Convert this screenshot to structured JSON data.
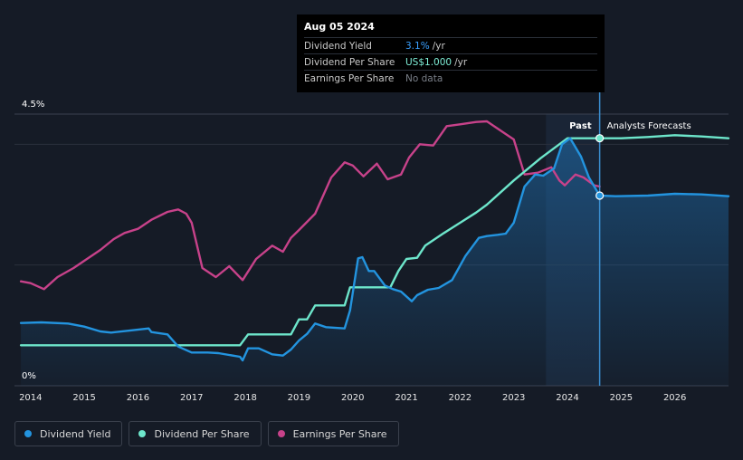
{
  "tooltip": {
    "date": "Aug 05 2024",
    "rows": [
      {
        "label": "Dividend Yield",
        "value": "3.1%",
        "unit": "/yr"
      },
      {
        "label": "Dividend Per Share",
        "value": "US$1.000",
        "unit": "/yr"
      },
      {
        "label": "Earnings Per Share",
        "value": "No data"
      }
    ]
  },
  "period_labels": {
    "past": "Past",
    "forecast": "Analysts Forecasts"
  },
  "legend": [
    {
      "label": "Dividend Yield",
      "color": "#2394df"
    },
    {
      "label": "Dividend Per Share",
      "color": "#6de6cb"
    },
    {
      "label": "Earnings Per Share",
      "color": "#c7428a"
    }
  ],
  "chart_data": {
    "type": "line",
    "x_range": [
      2013.7,
      2027.0
    ],
    "ylim": [
      0,
      4.5
    ],
    "y_tick_labels": [
      {
        "value": 0,
        "label": "0%"
      },
      {
        "value": 4.5,
        "label": "4.5%"
      }
    ],
    "x_ticks": [
      "2014",
      "2015",
      "2016",
      "2017",
      "2018",
      "2019",
      "2020",
      "2021",
      "2022",
      "2023",
      "2024",
      "2025",
      "2026"
    ],
    "forecast_start": 2024.6,
    "highlight_start": 2023.6,
    "series": [
      {
        "name": "Dividend Yield",
        "color": "#2394df",
        "x": [
          2013.82,
          2014.2,
          2014.7,
          2015.0,
          2015.3,
          2015.5,
          2015.9,
          2016.2,
          2016.25,
          2016.55,
          2016.75,
          2017.0,
          2017.3,
          2017.5,
          2017.9,
          2017.95,
          2018.05,
          2018.25,
          2018.5,
          2018.7,
          2018.85,
          2019.0,
          2019.15,
          2019.3,
          2019.5,
          2019.85,
          2019.95,
          2020.1,
          2020.18,
          2020.3,
          2020.4,
          2020.6,
          2020.75,
          2020.9,
          2021.1,
          2021.2,
          2021.4,
          2021.6,
          2021.85,
          2022.1,
          2022.35,
          2022.5,
          2022.7,
          2022.85,
          2023.0,
          2023.2,
          2023.4,
          2023.55,
          2023.75,
          2023.9,
          2024.05,
          2024.25,
          2024.4,
          2024.6,
          2024.9,
          2025.5,
          2026.0,
          2026.5,
          2027.0
        ],
        "y": [
          1.04,
          1.05,
          1.03,
          0.98,
          0.9,
          0.88,
          0.92,
          0.95,
          0.89,
          0.85,
          0.65,
          0.55,
          0.55,
          0.54,
          0.48,
          0.42,
          0.62,
          0.62,
          0.52,
          0.5,
          0.6,
          0.75,
          0.86,
          1.03,
          0.97,
          0.95,
          1.25,
          2.11,
          2.13,
          1.9,
          1.9,
          1.66,
          1.6,
          1.56,
          1.4,
          1.5,
          1.59,
          1.62,
          1.75,
          2.15,
          2.45,
          2.48,
          2.5,
          2.52,
          2.7,
          3.3,
          3.5,
          3.48,
          3.6,
          4.0,
          4.1,
          3.8,
          3.45,
          3.15,
          3.14,
          3.15,
          3.18,
          3.17,
          3.14
        ]
      },
      {
        "name": "Dividend Per Share",
        "color": "#6de6cb",
        "x": [
          2013.82,
          2017.9,
          2018.05,
          2018.85,
          2019.0,
          2019.15,
          2019.3,
          2019.85,
          2019.95,
          2020.7,
          2020.85,
          2021.0,
          2021.2,
          2021.35,
          2021.7,
          2022.0,
          2022.3,
          2022.5,
          2023.0,
          2023.5,
          2024.0,
          2024.6,
          2025.0,
          2025.5,
          2026.0,
          2026.5,
          2027.0
        ],
        "y": [
          0.67,
          0.67,
          0.85,
          0.85,
          1.1,
          1.1,
          1.33,
          1.33,
          1.63,
          1.63,
          1.9,
          2.1,
          2.12,
          2.32,
          2.53,
          2.7,
          2.87,
          3.0,
          3.4,
          3.77,
          4.1,
          4.1,
          4.1,
          4.12,
          4.15,
          4.13,
          4.1
        ]
      },
      {
        "name": "Earnings Per Share",
        "color": "#c7428a",
        "x": [
          2013.82,
          2014.0,
          2014.25,
          2014.5,
          2014.8,
          2015.0,
          2015.3,
          2015.55,
          2015.75,
          2016.0,
          2016.25,
          2016.55,
          2016.75,
          2016.9,
          2017.0,
          2017.2,
          2017.45,
          2017.7,
          2017.95,
          2018.2,
          2018.5,
          2018.7,
          2018.85,
          2019.0,
          2019.3,
          2019.6,
          2019.85,
          2020.0,
          2020.2,
          2020.45,
          2020.65,
          2020.9,
          2021.05,
          2021.25,
          2021.5,
          2021.75,
          2022.0,
          2022.3,
          2022.5,
          2022.8,
          2023.0,
          2023.2,
          2023.45,
          2023.7,
          2023.85,
          2023.95,
          2024.15,
          2024.3,
          2024.5,
          2024.6
        ],
        "y": [
          1.73,
          1.7,
          1.6,
          1.8,
          1.95,
          2.07,
          2.25,
          2.43,
          2.53,
          2.6,
          2.75,
          2.88,
          2.92,
          2.85,
          2.7,
          1.95,
          1.8,
          1.98,
          1.75,
          2.1,
          2.32,
          2.22,
          2.45,
          2.58,
          2.85,
          3.45,
          3.7,
          3.65,
          3.47,
          3.68,
          3.42,
          3.5,
          3.78,
          4.0,
          3.98,
          4.3,
          4.33,
          4.37,
          4.38,
          4.2,
          4.08,
          3.5,
          3.53,
          3.62,
          3.4,
          3.32,
          3.5,
          3.45,
          3.32,
          3.3
        ]
      }
    ]
  }
}
